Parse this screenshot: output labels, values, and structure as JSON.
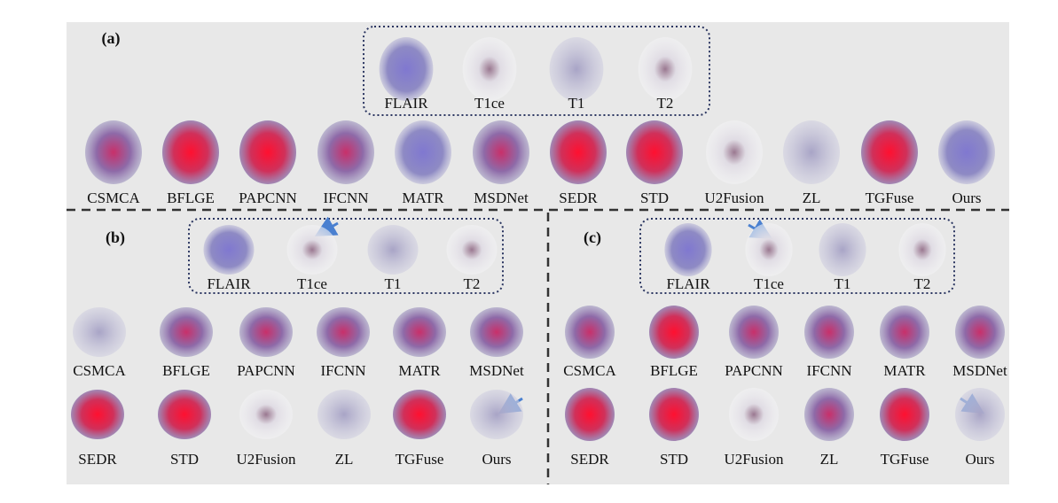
{
  "panels": [
    {
      "label": "(a)",
      "inputs": [
        "FLAIR",
        "T1ce",
        "T1",
        "T2"
      ],
      "outputs": [
        [
          "CSMCA",
          "BFLGE",
          "PAPCNN",
          "IFCNN",
          "MATR",
          "MSDNet",
          "SEDR",
          "STD",
          "U2Fusion",
          "ZL",
          "TGFuse",
          "Ours"
        ]
      ]
    },
    {
      "label": "(b)",
      "inputs": [
        "FLAIR",
        "T1ce",
        "T1",
        "T2"
      ],
      "outputs": [
        [
          "CSMCA",
          "BFLGE",
          "PAPCNN",
          "IFCNN",
          "MATR",
          "MSDNet"
        ],
        [
          "SEDR",
          "STD",
          "U2Fusion",
          "ZL",
          "TGFuse",
          "Ours"
        ]
      ]
    },
    {
      "label": "(c)",
      "inputs": [
        "FLAIR",
        "T1ce",
        "T1",
        "T2"
      ],
      "outputs": [
        [
          "CSMCA",
          "BFLGE",
          "PAPCNN",
          "IFCNN",
          "MATR",
          "MSDNet"
        ],
        [
          "SEDR",
          "STD",
          "U2Fusion",
          "ZL",
          "TGFuse",
          "Ours"
        ]
      ]
    }
  ]
}
